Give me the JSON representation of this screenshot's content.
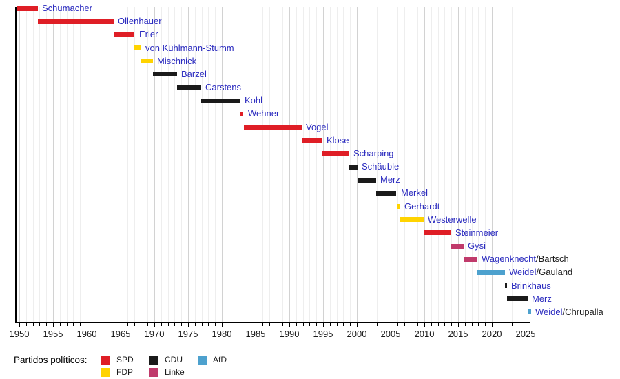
{
  "legend": {
    "title": "Partidos políticos:",
    "entries": [
      {
        "label": "SPD",
        "color": "#df1e26"
      },
      {
        "label": "FDP",
        "color": "#ffd300"
      },
      {
        "label": "CDU",
        "color": "#1a1a1a"
      },
      {
        "label": "Linke",
        "color": "#c03a6b"
      },
      {
        "label": "AfD",
        "color": "#4da1ce"
      }
    ]
  },
  "chart_data": {
    "type": "bar",
    "subtype": "gantt-timeline",
    "title": "",
    "xlabel": "",
    "ylabel": "",
    "grid": true,
    "x_axis": {
      "min": 1949.5,
      "max": 2026,
      "major_tick_labels": [
        "1950",
        "1955",
        "1960",
        "1965",
        "1970",
        "1975",
        "1980",
        "1985",
        "1990",
        "1995",
        "2000",
        "2005",
        "2010",
        "2015",
        "2020",
        "2025"
      ],
      "major_tick_years": [
        1950,
        1955,
        1960,
        1965,
        1970,
        1975,
        1980,
        1985,
        1990,
        1995,
        2000,
        2005,
        2010,
        2015,
        2020,
        2025
      ],
      "minor_tick_interval": 1
    },
    "party_colors": {
      "SPD": "#df1e26",
      "CDU": "#1a1a1a",
      "FDP": "#ffd300",
      "Linke": "#c03a6b",
      "AfD": "#4da1ce"
    },
    "rows": [
      {
        "name": "Schumacher",
        "suffix": "",
        "party": "SPD",
        "start": 1949.7,
        "end": 1952.8
      },
      {
        "name": "Ollenhauer",
        "suffix": "",
        "party": "SPD",
        "start": 1952.8,
        "end": 1964.0
      },
      {
        "name": "Erler",
        "suffix": "",
        "party": "SPD",
        "start": 1964.1,
        "end": 1967.1
      },
      {
        "name": "von Kühlmann-Stumm",
        "suffix": "",
        "party": "FDP",
        "start": 1967.05,
        "end": 1968.05
      },
      {
        "name": "Mischnick",
        "suffix": "",
        "party": "FDP",
        "start": 1968.05,
        "end": 1969.8
      },
      {
        "name": "Barzel",
        "suffix": "",
        "party": "CDU",
        "start": 1969.8,
        "end": 1973.4
      },
      {
        "name": "Carstens",
        "suffix": "",
        "party": "CDU",
        "start": 1973.4,
        "end": 1976.95
      },
      {
        "name": "Kohl",
        "suffix": "",
        "party": "CDU",
        "start": 1976.95,
        "end": 1982.8
      },
      {
        "name": "Wehner",
        "suffix": "",
        "party": "SPD",
        "start": 1982.8,
        "end": 1983.25
      },
      {
        "name": "Vogel",
        "suffix": "",
        "party": "SPD",
        "start": 1983.25,
        "end": 1991.85
      },
      {
        "name": "Klose",
        "suffix": "",
        "party": "SPD",
        "start": 1991.85,
        "end": 1994.9
      },
      {
        "name": "Scharping",
        "suffix": "",
        "party": "SPD",
        "start": 1994.9,
        "end": 1998.85
      },
      {
        "name": "Schäuble",
        "suffix": "",
        "party": "CDU",
        "start": 1998.85,
        "end": 2000.15
      },
      {
        "name": "Merz",
        "suffix": "",
        "party": "CDU",
        "start": 2000.15,
        "end": 2002.9
      },
      {
        "name": "Merkel",
        "suffix": "",
        "party": "CDU",
        "start": 2002.9,
        "end": 2005.9
      },
      {
        "name": "Gerhardt",
        "suffix": "",
        "party": "FDP",
        "start": 2005.9,
        "end": 2006.4
      },
      {
        "name": "Westerwelle",
        "suffix": "",
        "party": "FDP",
        "start": 2006.4,
        "end": 2009.85
      },
      {
        "name": "Steinmeier",
        "suffix": "",
        "party": "SPD",
        "start": 2009.85,
        "end": 2013.95
      },
      {
        "name": "Gysi",
        "suffix": "",
        "party": "Linke",
        "start": 2013.95,
        "end": 2015.8
      },
      {
        "name": "Wagenknecht",
        "suffix": "/Bartsch",
        "party": "Linke",
        "start": 2015.8,
        "end": 2017.85
      },
      {
        "name": "Weidel",
        "suffix": "/Gauland",
        "party": "AfD",
        "start": 2017.85,
        "end": 2021.95
      },
      {
        "name": "Brinkhaus",
        "suffix": "",
        "party": "CDU",
        "start": 2021.95,
        "end": 2022.25
      },
      {
        "name": "Merz",
        "suffix": "",
        "party": "CDU",
        "start": 2022.25,
        "end": 2025.35
      },
      {
        "name": "Weidel",
        "suffix": "/Chrupalla",
        "party": "AfD",
        "start": 2025.4,
        "end": 2025.8
      }
    ],
    "legend_position": "bottom",
    "text_colors": {
      "link_blue": "#2b2bbf",
      "plain_black": "#1a1a1a"
    }
  }
}
